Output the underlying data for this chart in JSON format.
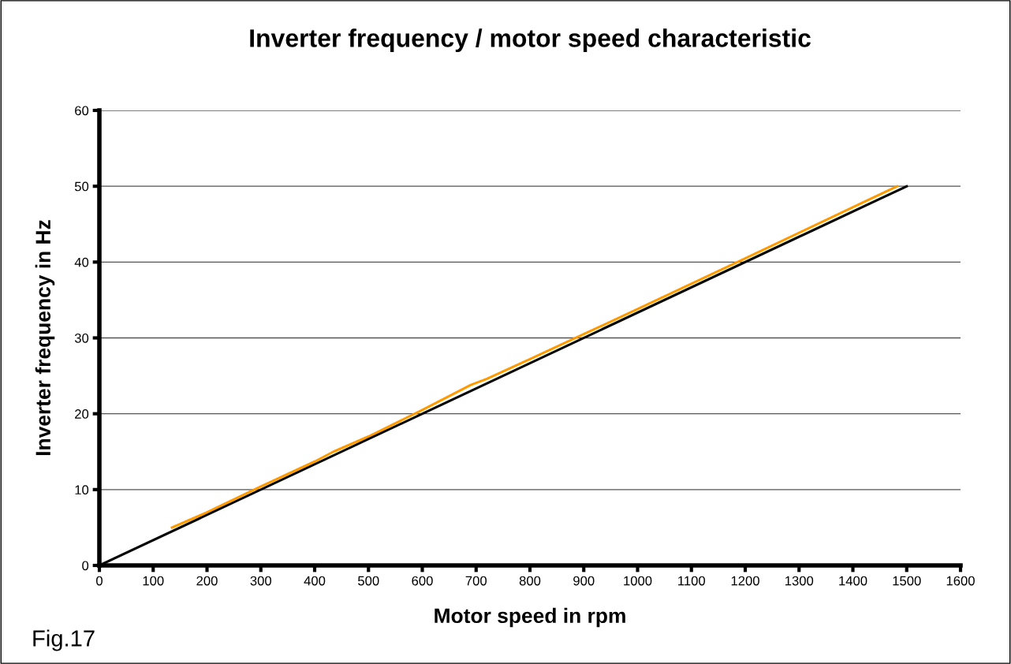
{
  "chart_data": {
    "type": "line",
    "title": "Inverter frequency / motor speed characteristic",
    "xlabel": "Motor speed in rpm",
    "ylabel": "Inverter frequency in Hz",
    "annotations": [
      "Fig.17"
    ],
    "series": [
      {
        "color": "#ff9900",
        "x": [
          135,
          200,
          300,
          400,
          435,
          500,
          600,
          690,
          720,
          800,
          900,
          1000,
          1200,
          1482
        ],
        "values": [
          5,
          7,
          10.4,
          13.7,
          15,
          17,
          20.5,
          23.8,
          24.6,
          27.2,
          30.5,
          33.8,
          40.5,
          50
        ]
      },
      {
        "color": "#000000",
        "x": [
          0,
          1500
        ],
        "values": [
          0,
          50
        ]
      }
    ],
    "xlim": [
      0,
      1600
    ],
    "xticks": [
      0,
      100,
      200,
      300,
      400,
      500,
      600,
      700,
      800,
      900,
      1000,
      1100,
      1200,
      1300,
      1400,
      1500,
      1600
    ],
    "ylim": [
      0,
      60
    ],
    "yticks": [
      0,
      10,
      20,
      30,
      40,
      50,
      60
    ],
    "grid": "y",
    "marker": "none",
    "line_style": "solid"
  }
}
